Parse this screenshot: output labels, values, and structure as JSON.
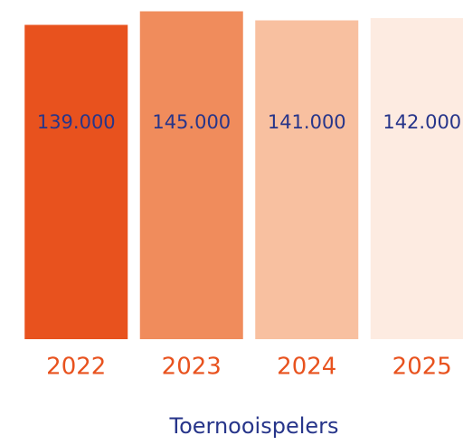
{
  "chart_data": {
    "type": "bar",
    "categories": [
      "2022",
      "2023",
      "2024",
      "2025"
    ],
    "values": [
      139000,
      145000,
      141000,
      142000
    ],
    "value_labels": [
      "139.000",
      "145.000",
      "141.000",
      "142.000"
    ],
    "colors": [
      "#e8521e",
      "#f08c5c",
      "#f8c0a0",
      "#fdebe1"
    ],
    "x_label": "Toernooispelers",
    "ylim": [
      0,
      150000
    ]
  }
}
